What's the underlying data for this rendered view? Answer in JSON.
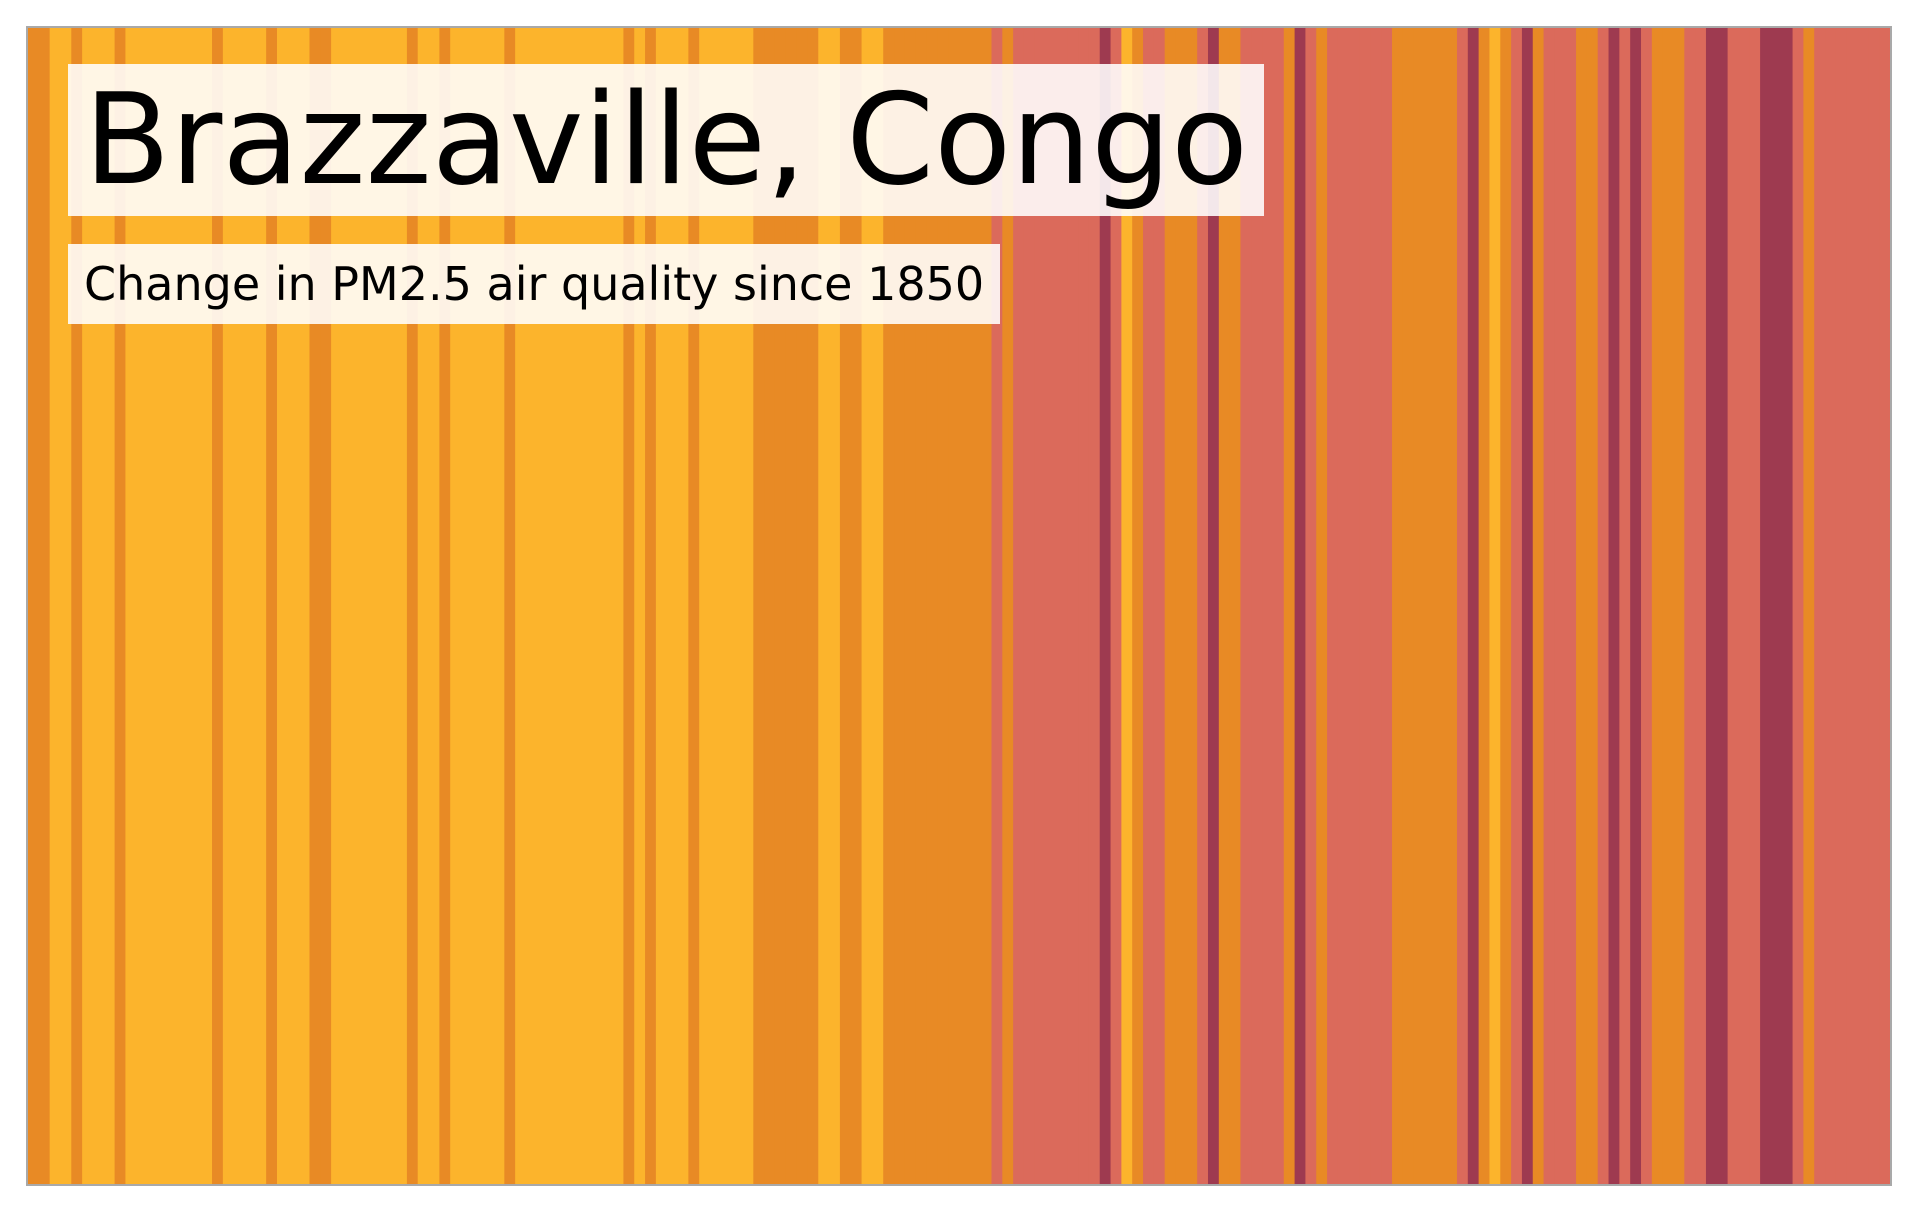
{
  "chart_data": {
    "type": "heatmap",
    "title": "Brazzaville, Congo",
    "subtitle": "Change in PM2.5 air quality since 1850",
    "x_start": 1850,
    "x_end": 2021,
    "palette": [
      "#fcb42c",
      "#e88a25",
      "#db6a5b",
      "#9e3a50"
    ],
    "values": [
      2,
      2,
      1,
      1,
      2,
      1,
      1,
      1,
      2,
      1,
      1,
      1,
      1,
      1,
      1,
      1,
      1,
      2,
      1,
      1,
      1,
      1,
      2,
      1,
      1,
      1,
      2,
      2,
      1,
      1,
      1,
      1,
      1,
      1,
      1,
      2,
      1,
      1,
      2,
      1,
      1,
      1,
      1,
      1,
      2,
      1,
      1,
      1,
      1,
      1,
      1,
      1,
      1,
      1,
      1,
      2,
      1,
      2,
      1,
      1,
      1,
      2,
      1,
      1,
      1,
      1,
      1,
      2,
      2,
      2,
      2,
      2,
      2,
      1,
      1,
      2,
      2,
      1,
      1,
      2,
      2,
      2,
      2,
      2,
      2,
      2,
      2,
      2,
      2,
      3,
      2,
      3,
      3,
      3,
      3,
      3,
      3,
      3,
      3,
      4,
      3,
      1,
      2,
      3,
      3,
      2,
      2,
      2,
      3,
      4,
      2,
      2,
      3,
      3,
      3,
      3,
      2,
      4,
      3,
      2,
      3,
      3,
      3,
      3,
      3,
      3,
      2,
      2,
      2,
      2,
      2,
      2,
      3,
      4,
      2,
      1,
      2,
      3,
      4,
      2,
      3,
      3,
      3,
      2,
      2,
      3,
      4,
      3,
      4,
      3,
      2,
      2,
      2,
      3,
      3,
      4,
      4,
      3,
      3,
      3,
      4,
      4,
      4,
      3,
      2,
      3,
      3,
      3,
      3,
      3,
      3,
      3
    ]
  }
}
